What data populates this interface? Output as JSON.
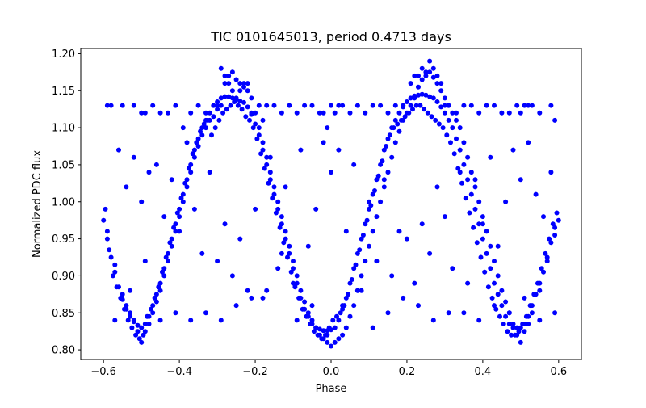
{
  "chart_data": {
    "type": "scatter",
    "title": "TIC 0101645013, period 0.4713 days",
    "xlabel": "Phase",
    "ylabel": "Normalized PDC flux",
    "xlim": [
      -0.66,
      0.66
    ],
    "ylim": [
      0.787,
      1.207
    ],
    "xticks": [
      {
        "value": -0.6,
        "label": "−0.6"
      },
      {
        "value": -0.4,
        "label": "−0.4"
      },
      {
        "value": -0.2,
        "label": "−0.2"
      },
      {
        "value": 0.0,
        "label": "0.0"
      },
      {
        "value": 0.2,
        "label": "0.2"
      },
      {
        "value": 0.4,
        "label": "0.4"
      },
      {
        "value": 0.6,
        "label": "0.6"
      }
    ],
    "yticks": [
      {
        "value": 0.8,
        "label": "0.80"
      },
      {
        "value": 0.85,
        "label": "0.85"
      },
      {
        "value": 0.9,
        "label": "0.90"
      },
      {
        "value": 0.95,
        "label": "0.95"
      },
      {
        "value": 1.0,
        "label": "1.00"
      },
      {
        "value": 1.05,
        "label": "1.05"
      },
      {
        "value": 1.1,
        "label": "1.10"
      },
      {
        "value": 1.15,
        "label": "1.15"
      },
      {
        "value": 1.2,
        "label": "1.20"
      }
    ],
    "grid": false,
    "marker_color": "#0000ff",
    "series": [
      {
        "x": [
          -0.6,
          -0.59,
          -0.58,
          -0.57,
          -0.56,
          -0.55,
          -0.54,
          -0.53,
          -0.52,
          -0.51,
          -0.5,
          -0.49,
          -0.48,
          -0.47,
          -0.46,
          -0.45,
          -0.44,
          -0.43,
          -0.42,
          -0.41,
          -0.4,
          -0.39,
          -0.38,
          -0.37,
          -0.36,
          -0.35,
          -0.34,
          -0.33,
          -0.32,
          -0.31,
          -0.3,
          -0.29,
          -0.28,
          -0.27,
          -0.26,
          -0.25,
          -0.24,
          -0.23,
          -0.22,
          -0.21,
          -0.2,
          -0.19,
          -0.18,
          -0.17,
          -0.16,
          -0.15,
          -0.14,
          -0.13,
          -0.12,
          -0.11,
          -0.1,
          -0.09,
          -0.08,
          -0.07,
          -0.06,
          -0.05,
          -0.04,
          -0.03,
          -0.02,
          -0.01,
          0.0,
          0.01,
          0.02,
          0.03,
          0.04,
          0.05,
          0.06,
          0.07,
          0.08,
          0.09,
          0.1,
          0.11,
          0.12,
          0.13,
          0.14,
          0.15,
          0.16,
          0.17,
          0.18,
          0.19,
          0.2,
          0.21,
          0.22,
          0.23,
          0.24,
          0.25,
          0.26,
          0.27,
          0.28,
          0.29,
          0.3,
          0.31,
          0.32,
          0.33,
          0.34,
          0.35,
          0.36,
          0.37,
          0.38,
          0.39,
          0.4,
          0.41,
          0.42,
          0.43,
          0.44,
          0.45,
          0.46,
          0.47,
          0.48,
          0.49,
          0.5,
          0.51,
          0.52,
          0.53,
          0.54,
          0.55,
          0.56,
          0.57,
          0.58,
          0.59,
          0.6
        ],
        "y": [
          0.975,
          0.95,
          0.925,
          0.905,
          0.885,
          0.868,
          0.855,
          0.845,
          0.838,
          0.833,
          0.83,
          0.835,
          0.845,
          0.86,
          0.875,
          0.89,
          0.91,
          0.93,
          0.95,
          0.97,
          0.99,
          1.01,
          1.03,
          1.05,
          1.07,
          1.085,
          1.1,
          1.11,
          1.12,
          1.13,
          1.135,
          1.14,
          1.142,
          1.142,
          1.14,
          1.138,
          1.136,
          1.134,
          1.128,
          1.118,
          1.105,
          1.09,
          1.07,
          1.05,
          1.03,
          1.01,
          0.99,
          0.97,
          0.95,
          0.93,
          0.91,
          0.89,
          0.87,
          0.855,
          0.845,
          0.835,
          0.83,
          0.828,
          0.826,
          0.826,
          0.827,
          0.83,
          0.84,
          0.855,
          0.87,
          0.89,
          0.91,
          0.93,
          0.95,
          0.97,
          0.99,
          1.01,
          1.03,
          1.05,
          1.07,
          1.085,
          1.1,
          1.11,
          1.12,
          1.128,
          1.135,
          1.14,
          1.143,
          1.144,
          1.145,
          1.144,
          1.142,
          1.14,
          1.135,
          1.128,
          1.12,
          1.11,
          1.1,
          1.085,
          1.07,
          1.05,
          1.03,
          1.01,
          0.99,
          0.97,
          0.95,
          0.93,
          0.91,
          0.89,
          0.875,
          0.86,
          0.845,
          0.835,
          0.83,
          0.83,
          0.83,
          0.835,
          0.845,
          0.86,
          0.875,
          0.89,
          0.905,
          0.925,
          0.945,
          0.965,
          0.975
        ]
      },
      {
        "x": [
          -0.59,
          -0.57,
          -0.55,
          -0.54,
          -0.53,
          -0.52,
          -0.51,
          -0.5,
          -0.49,
          -0.48,
          -0.47,
          -0.46,
          -0.45,
          -0.44,
          -0.43,
          -0.42,
          -0.41,
          -0.4,
          -0.39,
          -0.38,
          -0.37,
          -0.36,
          -0.35,
          -0.34,
          -0.33,
          -0.32,
          -0.31,
          -0.3,
          -0.29,
          -0.28,
          -0.27,
          -0.26,
          -0.25,
          -0.24,
          -0.23,
          -0.22,
          -0.21,
          -0.2,
          -0.19,
          -0.18,
          -0.17,
          -0.16,
          -0.15,
          -0.14,
          -0.13,
          -0.12,
          -0.11,
          -0.1,
          -0.09,
          -0.08,
          -0.07,
          -0.06,
          -0.05,
          -0.04,
          -0.03,
          -0.02,
          -0.01,
          0.0,
          0.01,
          0.02,
          0.03,
          0.04,
          0.05,
          0.06,
          0.07,
          0.08,
          0.09,
          0.1,
          0.11,
          0.12,
          0.13,
          0.14,
          0.15,
          0.16,
          0.17,
          0.18,
          0.19,
          0.2,
          0.21,
          0.22,
          0.23,
          0.24,
          0.25,
          0.26,
          0.27,
          0.28,
          0.29,
          0.3,
          0.31,
          0.32,
          0.33,
          0.34,
          0.35,
          0.36,
          0.37,
          0.38,
          0.39,
          0.4,
          0.41,
          0.42,
          0.43,
          0.44,
          0.45,
          0.46,
          0.47,
          0.48,
          0.49,
          0.5,
          0.51,
          0.52,
          0.53,
          0.55,
          0.57,
          0.59
        ],
        "y": [
          0.96,
          0.915,
          0.875,
          0.86,
          0.85,
          0.84,
          0.825,
          0.81,
          0.825,
          0.835,
          0.85,
          0.865,
          0.88,
          0.9,
          0.92,
          0.94,
          0.96,
          0.98,
          1.0,
          1.02,
          1.04,
          1.06,
          1.075,
          1.09,
          1.1,
          1.11,
          1.115,
          1.125,
          1.13,
          1.16,
          1.17,
          1.175,
          1.165,
          1.16,
          1.155,
          1.15,
          1.14,
          1.12,
          1.1,
          1.08,
          1.06,
          1.04,
          1.02,
          1.0,
          0.98,
          0.96,
          0.94,
          0.92,
          0.9,
          0.88,
          0.865,
          0.85,
          0.84,
          0.83,
          0.82,
          0.815,
          0.81,
          0.805,
          0.81,
          0.815,
          0.82,
          0.83,
          0.845,
          0.86,
          0.88,
          0.9,
          0.92,
          0.94,
          0.96,
          0.98,
          1.0,
          1.02,
          1.04,
          1.06,
          1.08,
          1.095,
          1.11,
          1.12,
          1.13,
          1.14,
          1.155,
          1.165,
          1.17,
          1.175,
          1.168,
          1.16,
          1.15,
          1.14,
          1.13,
          1.12,
          1.11,
          1.1,
          1.08,
          1.06,
          1.04,
          1.02,
          1.0,
          0.98,
          0.96,
          0.94,
          0.92,
          0.9,
          0.88,
          0.865,
          0.85,
          0.835,
          0.82,
          0.81,
          0.825,
          0.835,
          0.85,
          0.88,
          0.92,
          0.955
        ]
      },
      {
        "x": [
          -0.595,
          -0.585,
          -0.575,
          -0.565,
          -0.555,
          -0.545,
          -0.535,
          -0.525,
          -0.515,
          -0.505,
          -0.495,
          -0.485,
          -0.475,
          -0.465,
          -0.455,
          -0.445,
          -0.435,
          -0.425,
          -0.415,
          -0.405,
          -0.395,
          -0.385,
          -0.375,
          -0.365,
          -0.355,
          -0.345,
          -0.335,
          -0.325,
          -0.315,
          -0.305,
          -0.295,
          -0.285,
          -0.275,
          -0.265,
          -0.255,
          -0.245,
          -0.235,
          -0.225,
          -0.215,
          -0.205,
          -0.195,
          -0.185,
          -0.175,
          -0.165,
          -0.155,
          -0.145,
          -0.135,
          -0.125,
          -0.115,
          -0.105,
          -0.095,
          -0.085,
          -0.075,
          -0.065,
          -0.055,
          -0.045,
          -0.035,
          -0.025,
          -0.015,
          -0.005,
          0.005,
          0.015,
          0.025,
          0.035,
          0.045,
          0.055,
          0.065,
          0.075,
          0.085,
          0.095,
          0.105,
          0.115,
          0.125,
          0.135,
          0.145,
          0.155,
          0.165,
          0.175,
          0.185,
          0.195,
          0.205,
          0.215,
          0.225,
          0.235,
          0.245,
          0.255,
          0.265,
          0.275,
          0.285,
          0.295,
          0.305,
          0.315,
          0.325,
          0.335,
          0.345,
          0.355,
          0.365,
          0.375,
          0.385,
          0.395,
          0.405,
          0.415,
          0.425,
          0.435,
          0.445,
          0.455,
          0.465,
          0.475,
          0.485,
          0.495,
          0.505,
          0.515,
          0.525,
          0.535,
          0.545,
          0.555,
          0.565,
          0.575,
          0.585,
          0.595
        ],
        "y": [
          0.99,
          0.935,
          0.9,
          0.885,
          0.87,
          0.855,
          0.84,
          0.83,
          0.82,
          0.815,
          0.82,
          0.845,
          0.855,
          0.87,
          0.885,
          0.905,
          0.925,
          0.945,
          0.965,
          0.985,
          1.005,
          1.025,
          1.045,
          1.065,
          1.08,
          1.095,
          1.105,
          1.11,
          1.09,
          1.1,
          1.11,
          1.12,
          1.125,
          1.13,
          1.135,
          1.13,
          1.125,
          1.115,
          1.11,
          1.1,
          1.085,
          1.065,
          1.045,
          1.025,
          1.005,
          0.985,
          0.965,
          0.945,
          0.925,
          0.905,
          0.885,
          0.87,
          0.855,
          0.845,
          0.835,
          0.825,
          0.82,
          0.815,
          0.82,
          0.83,
          0.84,
          0.845,
          0.85,
          0.86,
          0.875,
          0.895,
          0.915,
          0.935,
          0.955,
          0.975,
          0.995,
          1.015,
          1.035,
          1.055,
          1.075,
          1.09,
          1.1,
          1.105,
          1.11,
          1.115,
          1.12,
          1.125,
          1.13,
          1.13,
          1.125,
          1.12,
          1.115,
          1.11,
          1.105,
          1.1,
          1.09,
          1.08,
          1.065,
          1.045,
          1.025,
          1.005,
          0.985,
          0.965,
          0.945,
          0.925,
          0.905,
          0.885,
          0.87,
          0.855,
          0.845,
          0.835,
          0.825,
          0.82,
          0.82,
          0.825,
          0.835,
          0.845,
          0.86,
          0.875,
          0.89,
          0.91,
          0.93,
          0.95,
          0.97,
          0.985
        ]
      },
      {
        "x": [
          -0.59,
          -0.58,
          -0.55,
          -0.52,
          -0.5,
          -0.49,
          -0.47,
          -0.45,
          -0.43,
          -0.41,
          -0.39,
          -0.37,
          -0.35,
          -0.33,
          -0.31,
          -0.3,
          -0.29,
          -0.28,
          -0.27,
          -0.26,
          -0.25,
          -0.24,
          -0.23,
          -0.22,
          -0.21,
          -0.19,
          -0.18,
          -0.17,
          -0.15,
          -0.13,
          -0.11,
          -0.09,
          -0.07,
          -0.05,
          -0.03,
          -0.02,
          -0.01,
          0.0,
          0.01,
          0.02,
          0.03,
          0.05,
          0.07,
          0.09,
          0.11,
          0.13,
          0.15,
          0.17,
          0.19,
          0.21,
          0.22,
          0.23,
          0.24,
          0.25,
          0.26,
          0.27,
          0.28,
          0.29,
          0.3,
          0.31,
          0.33,
          0.35,
          0.37,
          0.39,
          0.41,
          0.43,
          0.45,
          0.47,
          0.49,
          0.5,
          0.51,
          0.52,
          0.53,
          0.55,
          0.58,
          0.59
        ],
        "y": [
          1.13,
          1.13,
          1.13,
          1.13,
          1.12,
          1.12,
          1.13,
          1.12,
          1.12,
          1.13,
          1.1,
          1.12,
          1.13,
          1.12,
          1.13,
          1.13,
          1.18,
          1.17,
          1.16,
          1.15,
          1.14,
          1.15,
          1.16,
          1.16,
          1.12,
          1.13,
          1.11,
          1.13,
          1.13,
          1.12,
          1.13,
          1.12,
          1.13,
          1.13,
          1.12,
          1.12,
          1.1,
          1.13,
          1.12,
          1.13,
          1.13,
          1.12,
          1.13,
          1.12,
          1.13,
          1.13,
          1.12,
          1.13,
          1.13,
          1.16,
          1.17,
          1.17,
          1.18,
          1.175,
          1.19,
          1.18,
          1.17,
          1.16,
          1.13,
          1.13,
          1.12,
          1.13,
          1.13,
          1.12,
          1.13,
          1.13,
          1.12,
          1.12,
          1.13,
          1.12,
          1.13,
          1.13,
          1.13,
          1.12,
          1.13,
          1.11
        ]
      },
      {
        "x": [
          -0.56,
          -0.54,
          -0.52,
          -0.5,
          -0.48,
          -0.46,
          -0.44,
          -0.42,
          -0.4,
          -0.38,
          -0.36,
          -0.34,
          -0.32,
          -0.3,
          -0.28,
          -0.26,
          -0.24,
          -0.22,
          -0.2,
          -0.18,
          -0.16,
          -0.14,
          -0.12,
          -0.1,
          -0.08,
          -0.06,
          -0.04,
          -0.02,
          0.0,
          0.02,
          0.04,
          0.06,
          0.08,
          0.1,
          0.12,
          0.14,
          0.16,
          0.18,
          0.2,
          0.22,
          0.24,
          0.26,
          0.28,
          0.3,
          0.32,
          0.34,
          0.36,
          0.38,
          0.4,
          0.42,
          0.44,
          0.46,
          0.48,
          0.5,
          0.52,
          0.54,
          0.56,
          0.58
        ],
        "y": [
          1.07,
          1.02,
          1.06,
          1.0,
          1.04,
          1.05,
          0.98,
          1.03,
          0.96,
          1.08,
          0.99,
          0.93,
          1.04,
          0.92,
          0.97,
          0.9,
          0.95,
          0.88,
          0.99,
          0.87,
          1.06,
          0.91,
          1.02,
          0.89,
          1.07,
          0.94,
          0.99,
          1.08,
          1.04,
          1.07,
          0.96,
          1.05,
          0.88,
          1.0,
          0.92,
          1.03,
          0.9,
          0.96,
          0.95,
          0.89,
          0.97,
          0.93,
          1.02,
          0.98,
          0.91,
          1.04,
          0.89,
          1.03,
          0.97,
          1.06,
          0.94,
          1.0,
          1.07,
          1.03,
          1.08,
          1.01,
          0.98,
          1.04
        ]
      },
      {
        "x": [
          -0.57,
          -0.53,
          -0.49,
          -0.45,
          -0.41,
          -0.37,
          -0.33,
          -0.29,
          -0.25,
          -0.21,
          -0.17,
          -0.13,
          -0.09,
          -0.05,
          -0.01,
          0.03,
          0.07,
          0.11,
          0.15,
          0.19,
          0.23,
          0.27,
          0.31,
          0.35,
          0.39,
          0.43,
          0.47,
          0.51,
          0.55,
          0.59
        ],
        "y": [
          0.84,
          0.88,
          0.92,
          0.84,
          0.85,
          0.84,
          0.85,
          0.84,
          0.86,
          0.87,
          0.88,
          0.93,
          0.84,
          0.86,
          0.82,
          0.86,
          0.88,
          0.83,
          0.85,
          0.87,
          0.86,
          0.84,
          0.85,
          0.85,
          0.84,
          0.86,
          0.85,
          0.87,
          0.84,
          0.85
        ]
      }
    ]
  }
}
